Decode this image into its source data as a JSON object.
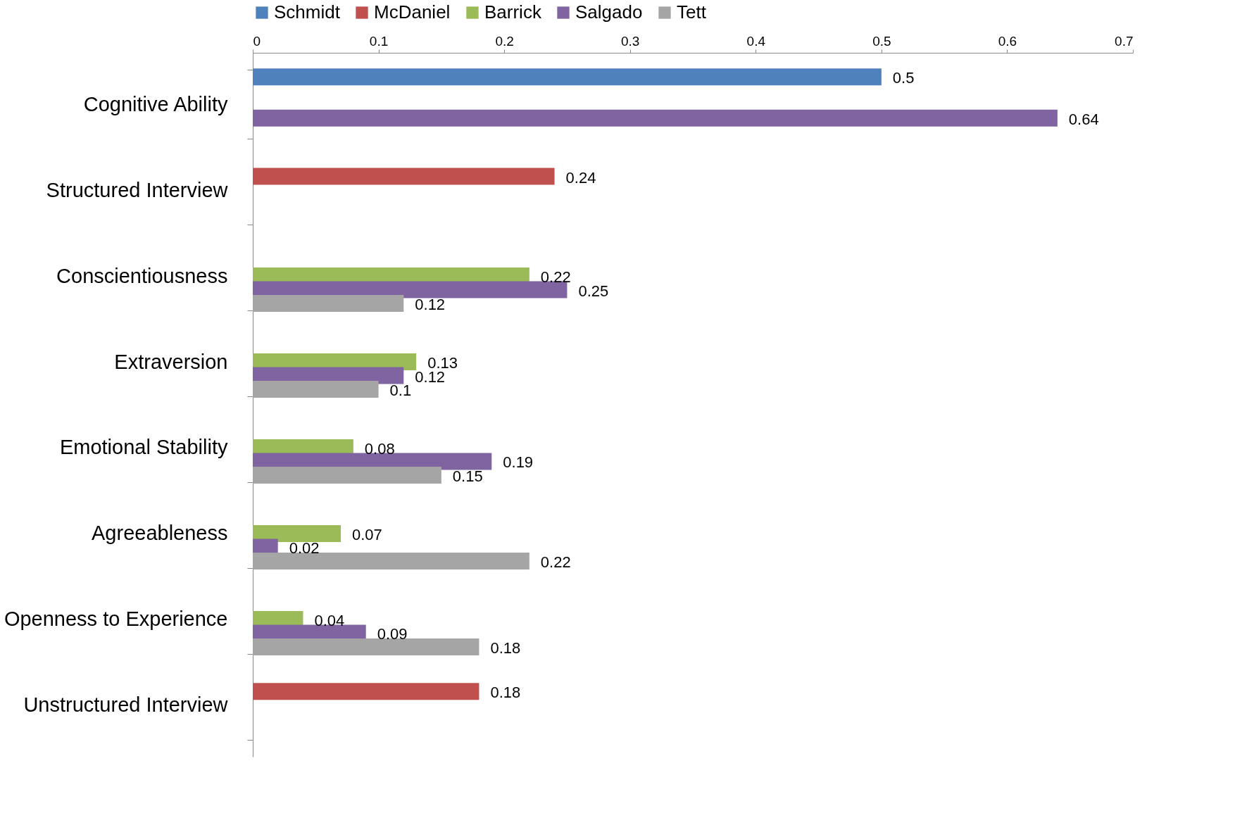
{
  "chart_data": {
    "type": "bar",
    "orientation": "horizontal",
    "categories": [
      "Cognitive Ability",
      "Structured Interview",
      "Conscientiousness",
      "Extraversion",
      "Emotional Stability",
      "Agreeableness",
      "Openness to Experience",
      "Unstructured Interview"
    ],
    "series": [
      {
        "name": "Schmidt",
        "color": "#4f81bd",
        "values": [
          0.5,
          null,
          null,
          null,
          null,
          null,
          null,
          null
        ]
      },
      {
        "name": "McDaniel",
        "color": "#c0504d",
        "values": [
          null,
          0.24,
          null,
          null,
          null,
          null,
          null,
          0.18
        ]
      },
      {
        "name": "Barrick",
        "color": "#9bbb59",
        "values": [
          null,
          null,
          0.22,
          0.13,
          0.08,
          0.07,
          0.04,
          null
        ]
      },
      {
        "name": "Salgado",
        "color": "#8064a2",
        "values": [
          0.64,
          null,
          0.25,
          0.12,
          0.19,
          0.02,
          0.09,
          null
        ]
      },
      {
        "name": "Tett",
        "color": "#a5a5a5",
        "values": [
          null,
          null,
          0.12,
          0.1,
          0.15,
          0.22,
          0.18,
          null
        ]
      }
    ],
    "xlim": [
      0,
      0.7
    ],
    "xticks": [
      0,
      0.1,
      0.2,
      0.3,
      0.4,
      0.5,
      0.6,
      0.7
    ],
    "data_labels": true,
    "legend": "top",
    "grid": false
  }
}
